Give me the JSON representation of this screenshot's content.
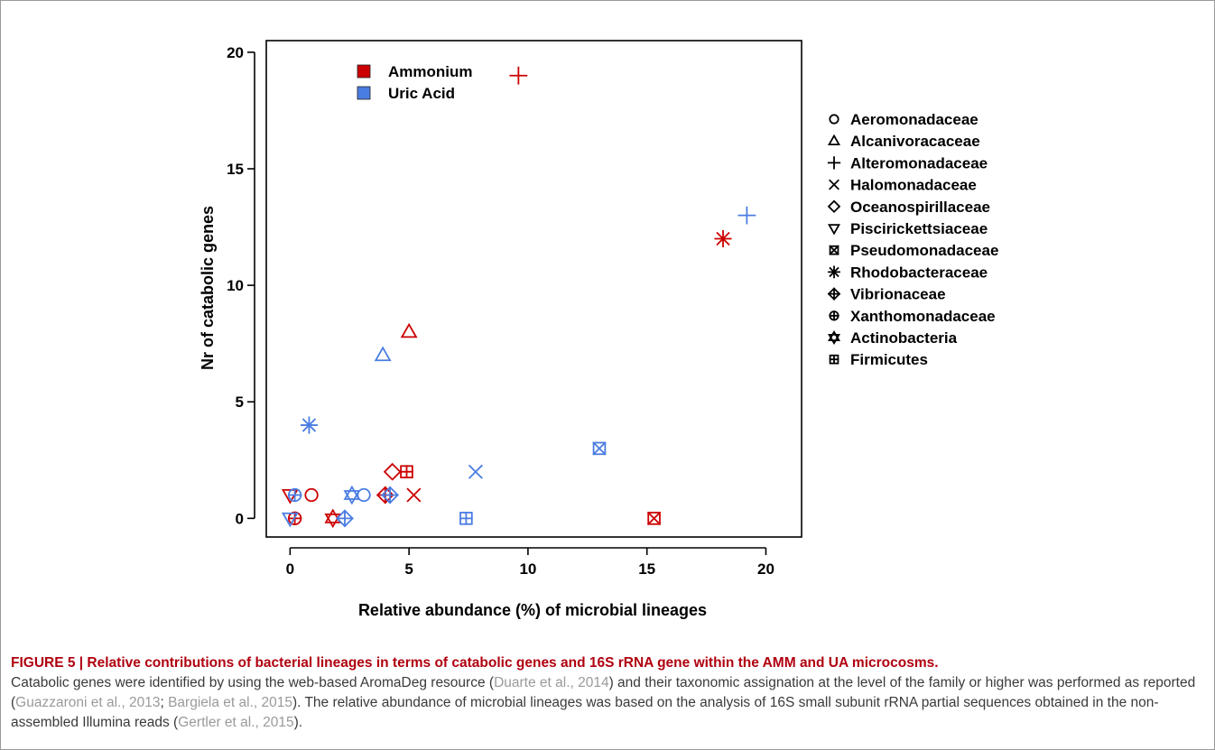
{
  "chart_data": {
    "type": "scatter",
    "xlabel": "Relative abundance (%) of microbial lineages",
    "ylabel": "Nr of catabolic genes",
    "xlim": [
      -1,
      21.5
    ],
    "ylim": [
      -0.8,
      20.5
    ],
    "xticks": [
      0,
      5,
      10,
      15,
      20
    ],
    "yticks": [
      0,
      5,
      10,
      15,
      20
    ],
    "grid": false,
    "color_legend": [
      {
        "name": "Ammonium",
        "color": "#cc0000"
      },
      {
        "name": "Uric Acid",
        "color": "#4a7de2"
      }
    ],
    "shape_legend": [
      {
        "name": "Aeromonadaceae",
        "marker": "circle"
      },
      {
        "name": "Alcanivoracaceae",
        "marker": "triangle-up"
      },
      {
        "name": "Alteromonadaceae",
        "marker": "plus"
      },
      {
        "name": "Halomonadaceae",
        "marker": "cross"
      },
      {
        "name": "Oceanospirillaceae",
        "marker": "diamond"
      },
      {
        "name": "Piscirickettsiaceae",
        "marker": "triangle-down"
      },
      {
        "name": "Pseudomonadaceae",
        "marker": "square-x"
      },
      {
        "name": "Rhodobacteraceae",
        "marker": "asterisk"
      },
      {
        "name": "Vibrionaceae",
        "marker": "diamond-plus"
      },
      {
        "name": "Xanthomonadaceae",
        "marker": "circle-plus"
      },
      {
        "name": "Actinobacteria",
        "marker": "star-of-david"
      },
      {
        "name": "Firmicutes",
        "marker": "square-plus"
      }
    ],
    "series": [
      {
        "name": "Ammonium",
        "points": [
          {
            "family": "Aeromonadaceae",
            "x": 0.9,
            "y": 1
          },
          {
            "family": "Alcanivoracaceae",
            "x": 5.0,
            "y": 8
          },
          {
            "family": "Alteromonadaceae",
            "x": 9.6,
            "y": 19
          },
          {
            "family": "Halomonadaceae",
            "x": 5.2,
            "y": 1
          },
          {
            "family": "Oceanospirillaceae",
            "x": 4.3,
            "y": 2
          },
          {
            "family": "Piscirickettsiaceae",
            "x": 0.0,
            "y": 1
          },
          {
            "family": "Pseudomonadaceae",
            "x": 15.3,
            "y": 0
          },
          {
            "family": "Rhodobacteraceae",
            "x": 18.2,
            "y": 12
          },
          {
            "family": "Vibrionaceae",
            "x": 4.0,
            "y": 1
          },
          {
            "family": "Xanthomonadaceae",
            "x": 0.2,
            "y": 0
          },
          {
            "family": "Actinobacteria",
            "x": 1.8,
            "y": 0
          },
          {
            "family": "Firmicutes",
            "x": 4.9,
            "y": 2
          }
        ]
      },
      {
        "name": "Uric Acid",
        "points": [
          {
            "family": "Aeromonadaceae",
            "x": 3.1,
            "y": 1
          },
          {
            "family": "Alcanivoracaceae",
            "x": 3.9,
            "y": 7
          },
          {
            "family": "Alteromonadaceae",
            "x": 19.2,
            "y": 13
          },
          {
            "family": "Halomonadaceae",
            "x": 7.8,
            "y": 2
          },
          {
            "family": "Piscirickettsiaceae",
            "x": 0.0,
            "y": 0
          },
          {
            "family": "Pseudomonadaceae",
            "x": 13.0,
            "y": 3
          },
          {
            "family": "Rhodobacteraceae",
            "x": 0.8,
            "y": 4
          },
          {
            "family": "Vibrionaceae",
            "x": 4.2,
            "y": 1
          },
          {
            "family": "Vibrionaceae",
            "x": 2.3,
            "y": 0
          },
          {
            "family": "Xanthomonadaceae",
            "x": 0.2,
            "y": 1
          },
          {
            "family": "Actinobacteria",
            "x": 2.6,
            "y": 1
          },
          {
            "family": "Firmicutes",
            "x": 7.4,
            "y": 0
          }
        ]
      }
    ]
  },
  "caption": {
    "title": "FIGURE 5 | Relative contributions of bacterial lineages in terms of catabolic genes and 16S rRNA gene within the AMM and UA microcosms.",
    "text_1": "Catabolic genes were identified by using the web-based AromaDeg resource (",
    "cite_1": "Duarte et al., 2014",
    "text_2": ") and their taxonomic assignation at the level of the family or higher was performed as reported (",
    "cite_2": "Guazzaroni et al., 2013",
    "text_3": "; ",
    "cite_3": "Bargiela et al., 2015",
    "text_4": "). The relative abundance of microbial lineages was based on the analysis of 16S small subunit rRNA partial sequences obtained in the non-assembled Illumina reads (",
    "cite_4": "Gertler et al., 2015",
    "text_5": ")."
  }
}
